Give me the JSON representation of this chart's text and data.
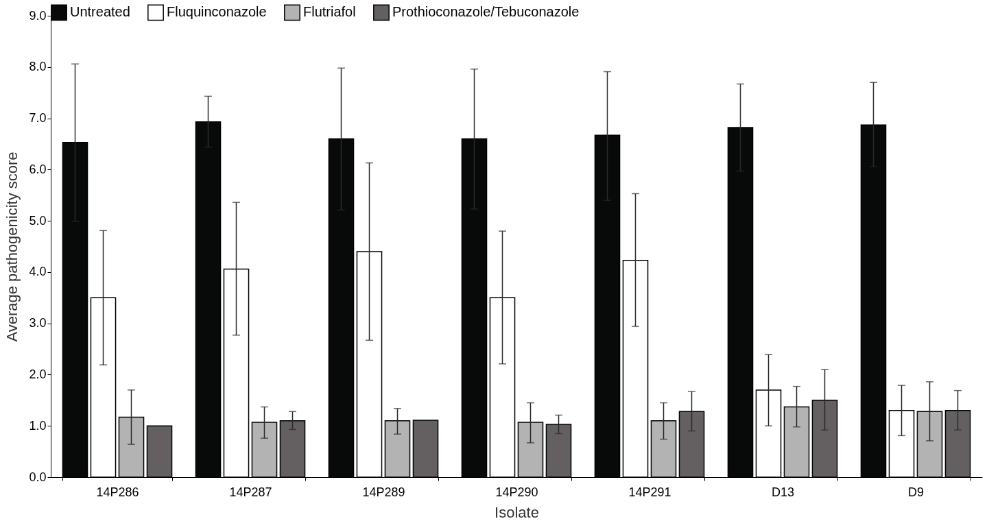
{
  "chart_data": {
    "type": "bar",
    "xlabel": "Isolate",
    "ylabel": "Average pathogenicity score",
    "categories": [
      "14P286",
      "14P287",
      "14P289",
      "14P290",
      "14P291",
      "D13",
      "D9"
    ],
    "series": [
      {
        "name": "Untreated",
        "color": "#080a09",
        "values": [
          6.53,
          6.93,
          6.6,
          6.6,
          6.67,
          6.82,
          6.87
        ],
        "errors": [
          [
            4.99,
            8.06
          ],
          [
            6.44,
            7.43
          ],
          [
            5.21,
            7.98
          ],
          [
            5.23,
            7.96
          ],
          [
            5.4,
            7.91
          ],
          [
            5.97,
            7.67
          ],
          [
            6.06,
            7.7
          ]
        ]
      },
      {
        "name": "Fluquinconazole",
        "color": "#ffffff",
        "values": [
          3.5,
          4.06,
          4.4,
          3.5,
          4.23,
          1.7,
          1.3
        ],
        "errors": [
          [
            2.19,
            4.81
          ],
          [
            2.77,
            5.36
          ],
          [
            2.67,
            6.13
          ],
          [
            2.21,
            4.8
          ],
          [
            2.94,
            5.53
          ],
          [
            1.0,
            2.39
          ],
          [
            0.81,
            1.79
          ]
        ]
      },
      {
        "name": "Flutriafol",
        "color": "#b3b3b3",
        "values": [
          1.17,
          1.07,
          1.1,
          1.07,
          1.1,
          1.37,
          1.28
        ],
        "errors": [
          [
            0.64,
            1.7
          ],
          [
            0.76,
            1.37
          ],
          [
            0.84,
            1.34
          ],
          [
            0.67,
            1.45
          ],
          [
            0.74,
            1.45
          ],
          [
            0.98,
            1.77
          ],
          [
            0.71,
            1.86
          ]
        ]
      },
      {
        "name": "Prothioconazole/Tebuconazole",
        "color": "#646062",
        "values": [
          1.0,
          1.1,
          1.11,
          1.03,
          1.28,
          1.5,
          1.3
        ],
        "errors": [
          null,
          [
            0.93,
            1.28
          ],
          null,
          [
            0.85,
            1.21
          ],
          [
            0.9,
            1.67
          ],
          [
            0.92,
            2.1
          ],
          [
            0.92,
            1.69
          ]
        ]
      }
    ],
    "ylim": [
      0,
      9
    ],
    "yticks": [
      {
        "value": 0,
        "label": "0.0"
      },
      {
        "value": 1,
        "label": "1.0"
      },
      {
        "value": 2,
        "label": "2.0"
      },
      {
        "value": 3,
        "label": "3.0"
      },
      {
        "value": 4,
        "label": "4.0"
      },
      {
        "value": 5,
        "label": "5.0"
      },
      {
        "value": 6,
        "label": "6.0"
      },
      {
        "value": 7,
        "label": "7.0"
      },
      {
        "value": 8,
        "label": "8.0"
      },
      {
        "value": 9,
        "label": "9.0"
      }
    ],
    "grid": false,
    "legend": "top"
  }
}
